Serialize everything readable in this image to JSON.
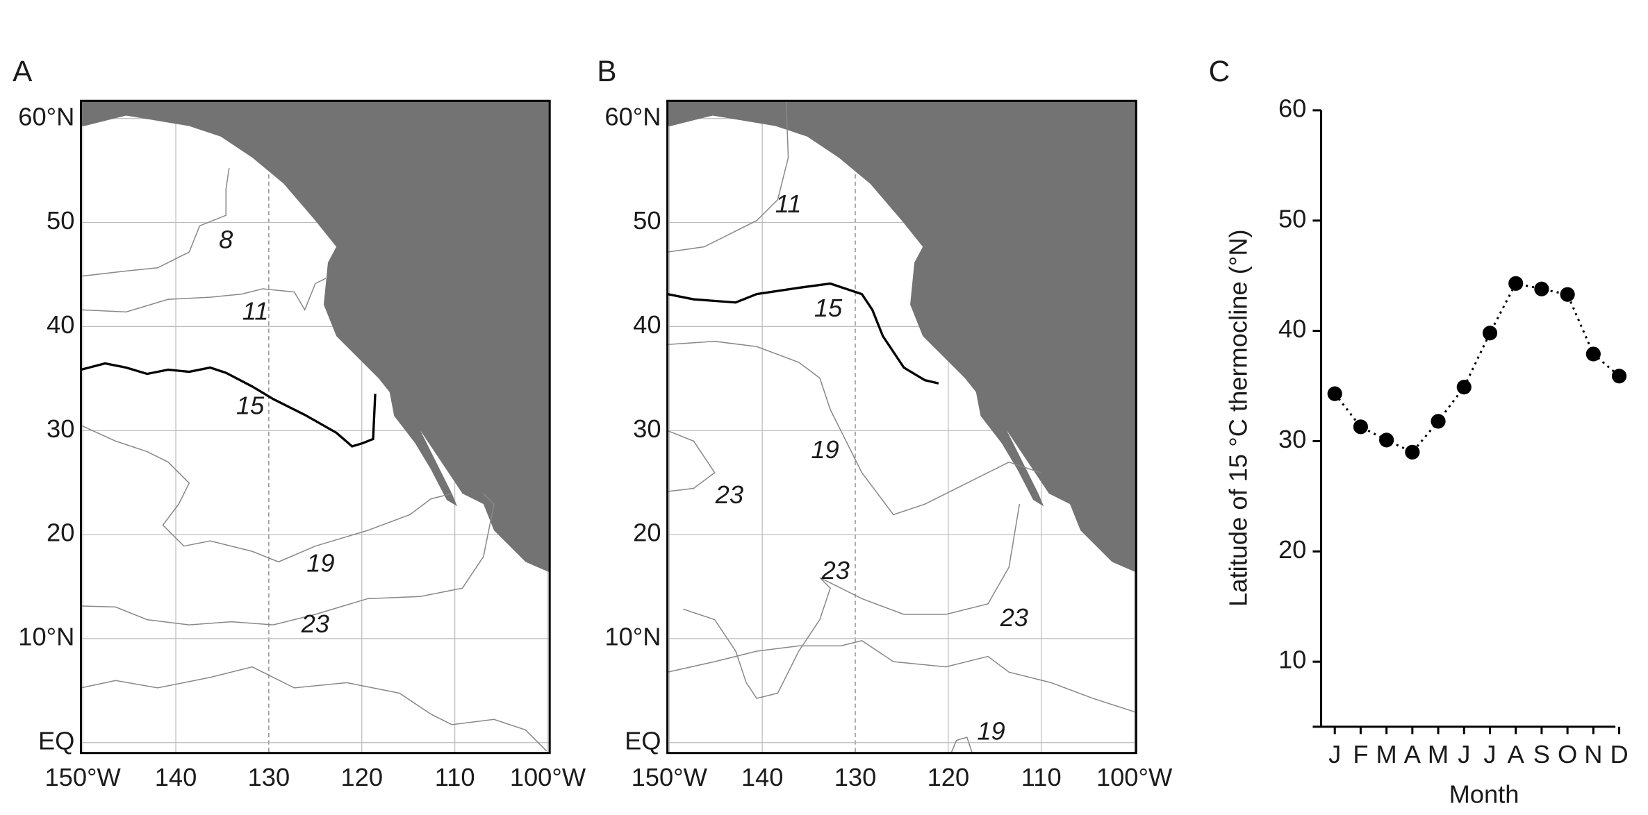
{
  "chart_data": [
    {
      "type": "map",
      "panel": "A",
      "xlim": [
        150.2,
        99.8
      ],
      "xticks": [
        {
          "value": 150,
          "label": "150°W"
        },
        140,
        130,
        120,
        110,
        {
          "value": 100,
          "label": "100°W"
        }
      ],
      "ylim": [
        -1,
        61.7
      ],
      "yticks": [
        {
          "value": 0,
          "label": "EQ"
        },
        {
          "value": 10,
          "label": "10°N"
        },
        20,
        30,
        40,
        50,
        {
          "value": 60,
          "label": "60°N"
        }
      ],
      "grid": true,
      "contour_labels": [
        8,
        11,
        15,
        19,
        23
      ]
    },
    {
      "type": "map",
      "panel": "B",
      "xlim": [
        150.2,
        99.8
      ],
      "xticks": [
        {
          "value": 150,
          "label": "150°W"
        },
        140,
        130,
        120,
        110,
        {
          "value": 100,
          "label": "100°W"
        }
      ],
      "ylim": [
        -1,
        61.7
      ],
      "yticks": [
        {
          "value": 0,
          "label": "EQ"
        },
        {
          "value": 10,
          "label": "10°N"
        },
        20,
        30,
        40,
        50,
        {
          "value": 60,
          "label": "60°N"
        }
      ],
      "grid": true,
      "contour_labels": [
        11,
        15,
        19,
        23,
        23,
        23,
        19
      ]
    },
    {
      "type": "line",
      "panel": "C",
      "y_label": "Latitude of 15 °C thermocline (°N)",
      "x_label": "Month",
      "categories": [
        "J",
        "F",
        "M",
        "A",
        "M",
        "J",
        "J",
        "A",
        "S",
        "O",
        "N",
        "D"
      ],
      "values": [
        34.3,
        31.3,
        30.1,
        29.0,
        31.8,
        34.9,
        39.8,
        44.3,
        43.8,
        43.3,
        37.9,
        35.9
      ],
      "color": "#000000",
      "ylim": [
        4.1,
        60
      ],
      "yticks": [
        10,
        20,
        30,
        40,
        50,
        60
      ]
    }
  ]
}
